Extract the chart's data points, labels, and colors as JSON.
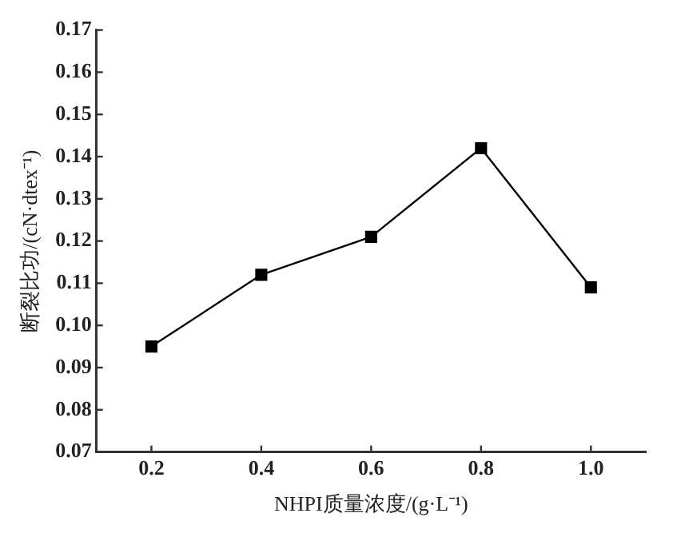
{
  "chart_data": {
    "type": "line",
    "xlabel": "NHPI质量浓度/(g·L⁻¹)",
    "ylabel": "断裂比功/(cN·dtex⁻¹)",
    "x": [
      0.2,
      0.4,
      0.6,
      0.8,
      1.0
    ],
    "series": [
      {
        "color": "#000000",
        "values": [
          0.095,
          0.112,
          0.121,
          0.142,
          0.109
        ]
      }
    ],
    "xlim": [
      0.1,
      1.1
    ],
    "xticks": [
      {
        "value": 0.2,
        "label": "0.2"
      },
      {
        "value": 0.4,
        "label": "0.4"
      },
      {
        "value": 0.6,
        "label": "0.6"
      },
      {
        "value": 0.8,
        "label": "0.8"
      },
      {
        "value": 1.0,
        "label": "1.0"
      }
    ],
    "ylim": [
      0.07,
      0.17
    ],
    "yticks": [
      {
        "value": 0.07,
        "label": "0.07"
      },
      {
        "value": 0.08,
        "label": "0.08"
      },
      {
        "value": 0.09,
        "label": "0.09"
      },
      {
        "value": 0.1,
        "label": "0.10"
      },
      {
        "value": 0.11,
        "label": "0.11"
      },
      {
        "value": 0.12,
        "label": "0.12"
      },
      {
        "value": 0.13,
        "label": "0.13"
      },
      {
        "value": 0.14,
        "label": "0.14"
      },
      {
        "value": 0.15,
        "label": "0.15"
      },
      {
        "value": 0.16,
        "label": "0.16"
      },
      {
        "value": 0.17,
        "label": "0.17"
      }
    ],
    "grid": false,
    "legend": false,
    "marker": "square",
    "line_style": "solid"
  }
}
